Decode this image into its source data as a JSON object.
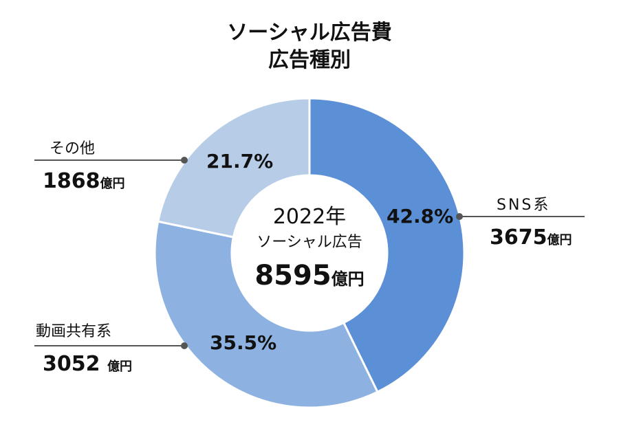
{
  "chart_data": {
    "type": "pie",
    "donut": true,
    "title": [
      "ソーシャル広告費",
      "広告種別"
    ],
    "center_label": {
      "year": "2022年",
      "name": "ソーシャル広告",
      "total": "8595",
      "unit": "億円"
    },
    "start_angle": "top",
    "direction": "clockwise",
    "slices": [
      {
        "name": "SNS系",
        "value": 3675,
        "unit": "億円",
        "percent": "42.8%",
        "color": "#5b8fd6"
      },
      {
        "name": "動画共有系",
        "value": 3052,
        "unit": "億円",
        "percent": "35.5%",
        "color": "#8db2e2"
      },
      {
        "name": "その他",
        "value": 1868,
        "unit": "億円",
        "percent": "21.7%",
        "color": "#b7cce6"
      }
    ]
  }
}
